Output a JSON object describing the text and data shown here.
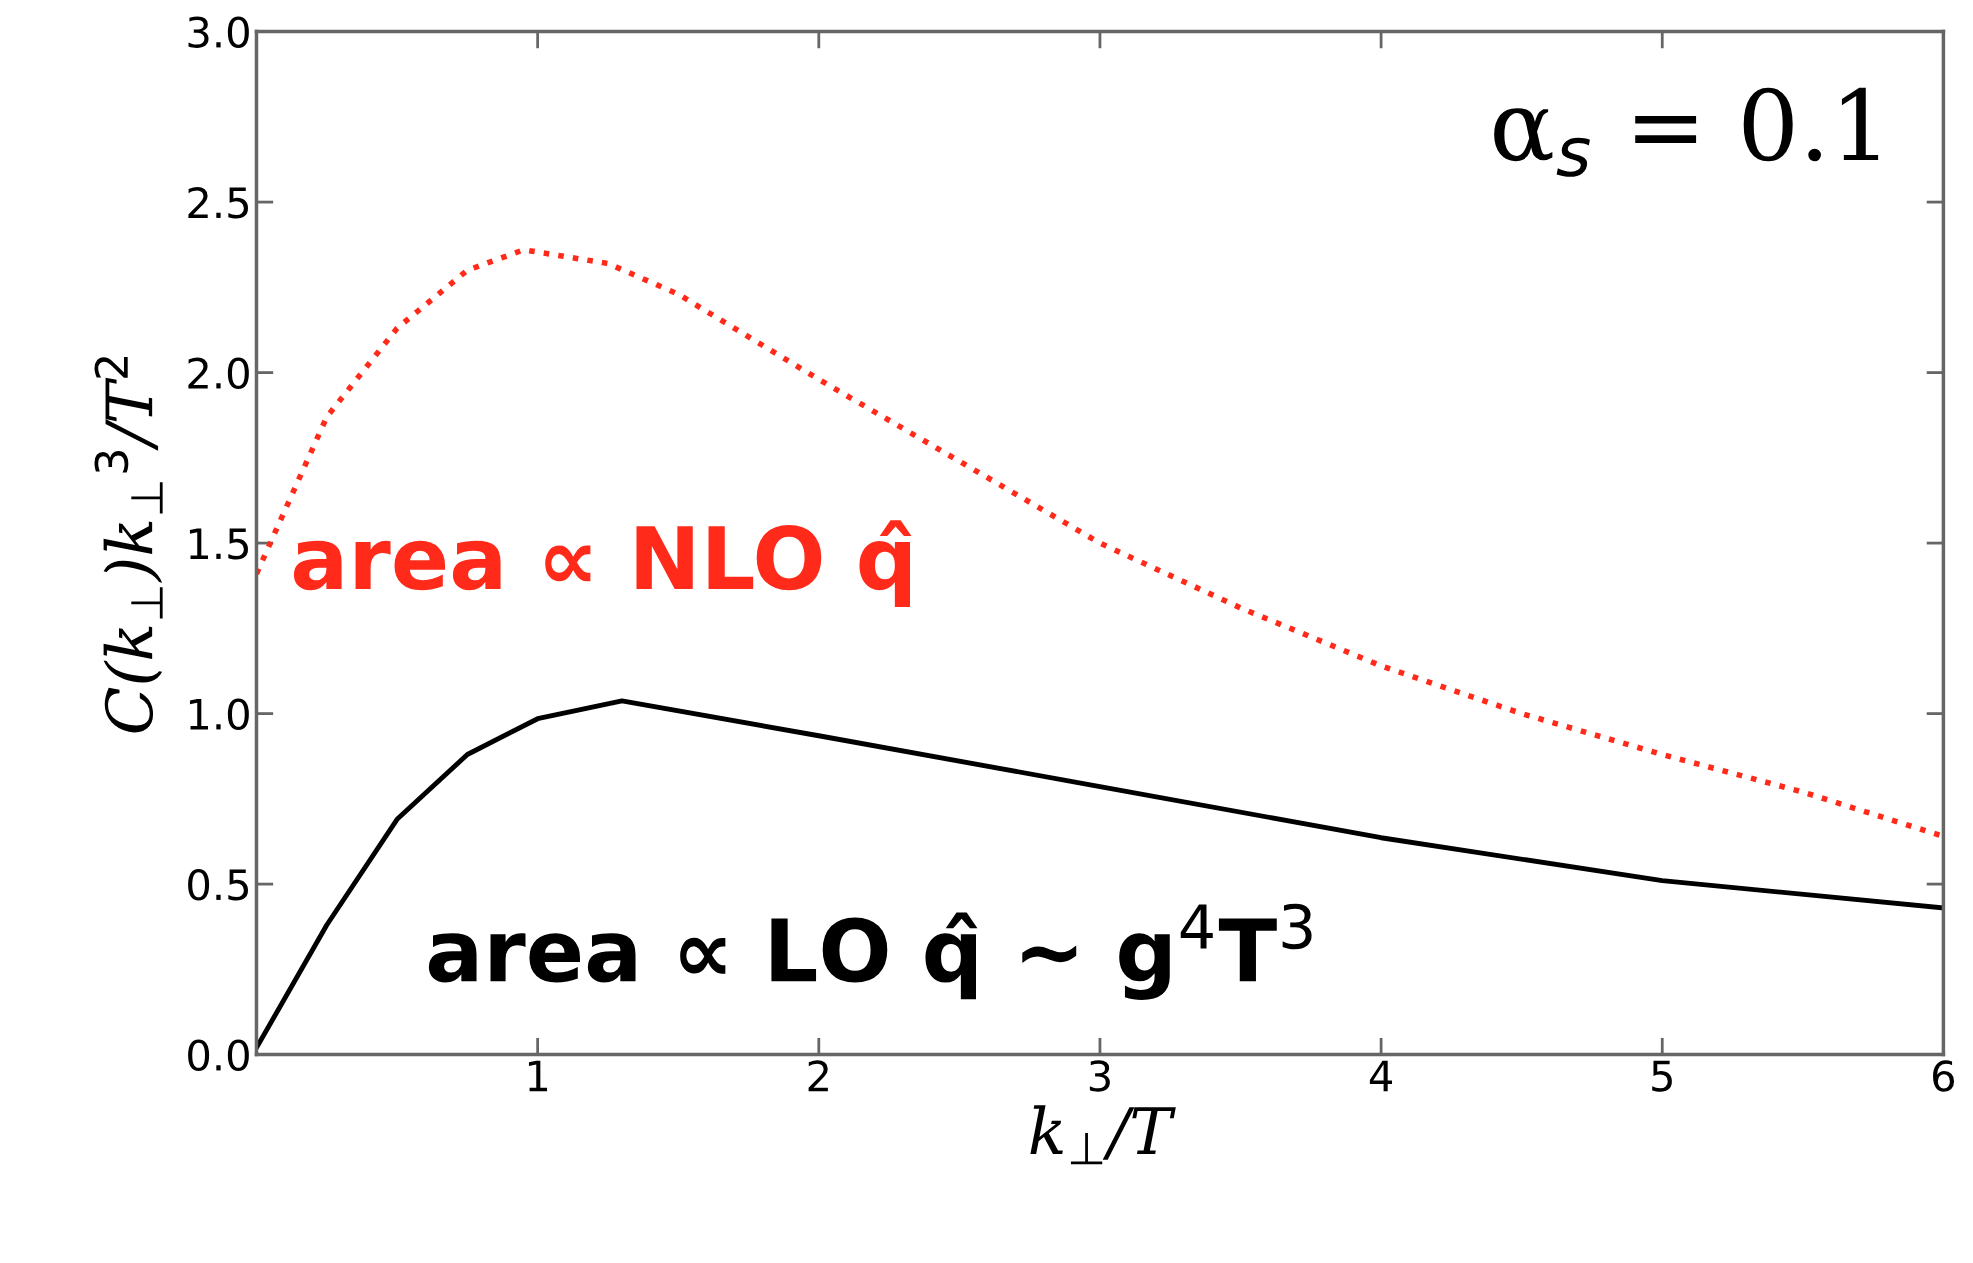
{
  "chart_data": {
    "type": "line",
    "xlabel": "k$_{⊥}$/T",
    "ylabel": "C(k$_{⊥}$)k$_{⊥}$$^{3}$/T$^{2}$",
    "xlim": [
      0,
      6
    ],
    "ylim": [
      0,
      3.0
    ],
    "xticks": [
      {
        "value": 0,
        "label": null
      },
      1,
      2,
      3,
      4,
      5,
      6
    ],
    "yticks": [
      {
        "value": 0,
        "label": "0.0"
      },
      0.5,
      {
        "value": 1,
        "label": "1.0"
      },
      1.5,
      {
        "value": 2,
        "label": "2.0"
      },
      2.5,
      {
        "value": 3,
        "label": "3.0"
      }
    ],
    "grid": false,
    "legend": false,
    "annotations": [
      "α$_{s}$ = 0.1",
      "area ∝ NLO q̂",
      "area ∝ LO q̂ ~ g$^{4}$T$^{3}$"
    ],
    "series": [
      {
        "color": "#ff2a1a",
        "line_style": "dotted",
        "x": [
          0,
          0.25,
          0.5,
          0.75,
          0.95,
          1.25,
          1.5,
          2,
          2.5,
          3,
          3.5,
          4,
          4.5,
          5,
          5.5,
          6
        ],
        "values": [
          1.41,
          1.87,
          2.13,
          2.3,
          2.36,
          2.32,
          2.23,
          1.98,
          1.74,
          1.5,
          1.31,
          1.14,
          1.0,
          0.88,
          0.77,
          0.64
        ]
      },
      {
        "color": "#000000",
        "line_style": "solid",
        "x": [
          0,
          0.25,
          0.5,
          0.75,
          1,
          1.3,
          2,
          3,
          4,
          5,
          6
        ],
        "values": [
          0.02,
          0.38,
          0.69,
          0.88,
          0.985,
          1.037,
          0.935,
          0.786,
          0.636,
          0.51,
          0.43
        ]
      }
    ]
  }
}
